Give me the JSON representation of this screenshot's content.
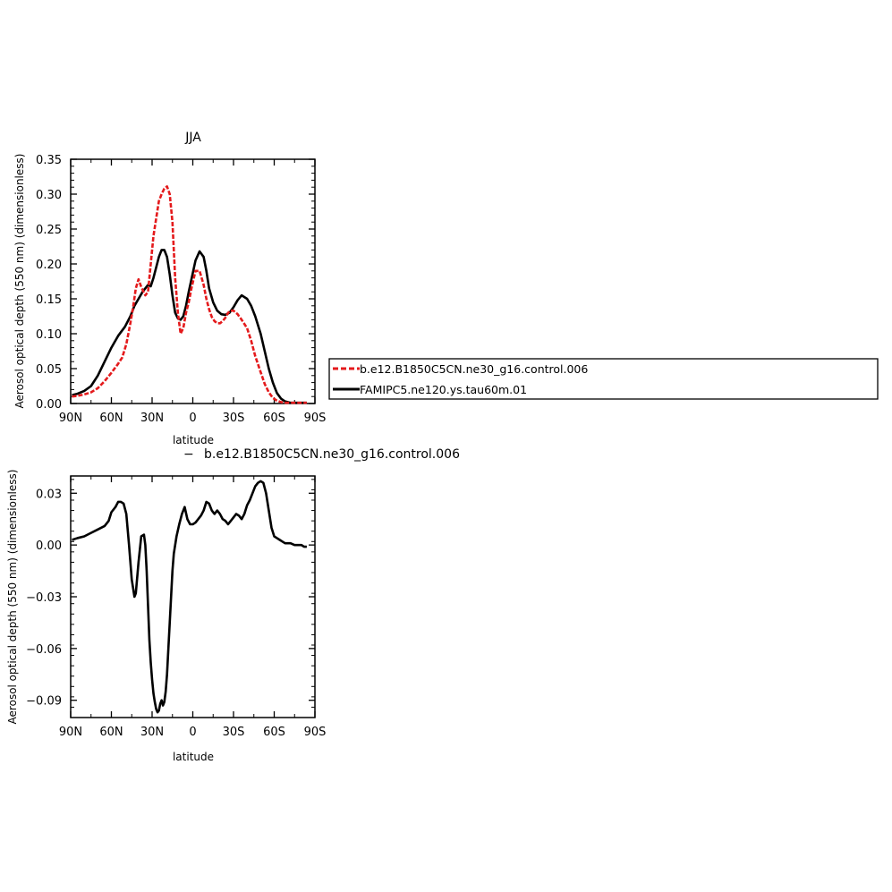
{
  "chart_data": [
    {
      "type": "line",
      "title": "JJA",
      "xlabel": "latitude",
      "ylabel": "Aerosol optical depth (550 nm) (dimensionless)",
      "xlim": [
        90,
        -90
      ],
      "ylim": [
        0,
        0.35
      ],
      "x_ticks": [
        90,
        60,
        30,
        0,
        -30,
        -60,
        -90
      ],
      "x_tick_labels": [
        "90N",
        "60N",
        "30N",
        "0",
        "30S",
        "60S",
        "90S"
      ],
      "y_ticks": [
        0,
        0.05,
        0.1,
        0.15,
        0.2,
        0.25,
        0.3,
        0.35
      ],
      "y_tick_labels": [
        "0.00",
        "0.05",
        "0.10",
        "0.15",
        "0.20",
        "0.25",
        "0.30",
        "0.35"
      ],
      "grid": false,
      "legend_position": "right, outside plot",
      "series": [
        {
          "name": "b.e12.B1850C5CN.ne30_g16.control.006",
          "color": "#e41a1c",
          "dash": "dashed",
          "x": [
            89,
            85,
            80,
            75,
            70,
            65,
            60,
            55,
            52,
            49,
            46,
            44,
            42,
            40,
            38,
            35,
            33,
            31,
            29,
            27,
            25,
            23,
            21,
            19,
            17,
            15,
            13,
            11,
            9,
            7,
            5,
            3,
            1,
            -2,
            -5,
            -8,
            -10,
            -12,
            -14,
            -16,
            -18,
            -20,
            -22,
            -24,
            -26,
            -28,
            -30,
            -33,
            -36,
            -40,
            -43,
            -46,
            -50,
            -53,
            -56,
            -59,
            -62,
            -65,
            -68,
            -70,
            -72,
            -75,
            -80,
            -84
          ],
          "y": [
            0.01,
            0.011,
            0.013,
            0.016,
            0.022,
            0.032,
            0.044,
            0.057,
            0.066,
            0.085,
            0.115,
            0.138,
            0.165,
            0.178,
            0.167,
            0.155,
            0.16,
            0.2,
            0.24,
            0.265,
            0.29,
            0.3,
            0.308,
            0.311,
            0.3,
            0.26,
            0.18,
            0.13,
            0.1,
            0.108,
            0.13,
            0.145,
            0.165,
            0.19,
            0.19,
            0.17,
            0.15,
            0.135,
            0.124,
            0.118,
            0.115,
            0.115,
            0.118,
            0.123,
            0.13,
            0.133,
            0.133,
            0.128,
            0.12,
            0.108,
            0.09,
            0.068,
            0.045,
            0.028,
            0.016,
            0.008,
            0.004,
            0.002,
            0.001,
            0.001,
            0.001,
            0.001,
            0.001,
            0.001
          ]
        },
        {
          "name": "FAMIPC5.ne120.ys.tau60m.01",
          "color": "#000000",
          "dash": "solid",
          "x": [
            89,
            85,
            80,
            75,
            70,
            65,
            60,
            55,
            50,
            46,
            43,
            40,
            37,
            35,
            33,
            31,
            29,
            27,
            25,
            23,
            21,
            19,
            17,
            15,
            13,
            11,
            9,
            7,
            5,
            3,
            1,
            -2,
            -5,
            -8,
            -10,
            -12,
            -15,
            -18,
            -21,
            -24,
            -27,
            -30,
            -33,
            -36,
            -40,
            -43,
            -46,
            -50,
            -53,
            -56,
            -59,
            -62,
            -65,
            -68,
            -70,
            -72,
            -75,
            -80,
            -84
          ],
          "y": [
            0.012,
            0.014,
            0.018,
            0.025,
            0.04,
            0.06,
            0.08,
            0.097,
            0.11,
            0.125,
            0.14,
            0.15,
            0.16,
            0.165,
            0.17,
            0.168,
            0.18,
            0.195,
            0.21,
            0.22,
            0.22,
            0.21,
            0.185,
            0.155,
            0.13,
            0.122,
            0.12,
            0.125,
            0.14,
            0.16,
            0.178,
            0.205,
            0.218,
            0.21,
            0.19,
            0.165,
            0.145,
            0.133,
            0.128,
            0.127,
            0.13,
            0.138,
            0.148,
            0.155,
            0.15,
            0.14,
            0.125,
            0.1,
            0.075,
            0.05,
            0.03,
            0.015,
            0.007,
            0.003,
            0.002,
            0.001,
            0.001,
            0.001,
            0.001
          ]
        }
      ]
    },
    {
      "type": "line",
      "title": "b.e12.B1850C5CN.ne30_g16.control.006",
      "title_prefix": "−",
      "xlabel": "latitude",
      "ylabel": "Aerosol optical depth (550 nm) (dimensionless)",
      "xlim": [
        90,
        -90
      ],
      "ylim": [
        -0.1,
        0.04
      ],
      "x_ticks": [
        90,
        60,
        30,
        0,
        -30,
        -60,
        -90
      ],
      "x_tick_labels": [
        "90N",
        "60N",
        "30N",
        "0",
        "30S",
        "60S",
        "90S"
      ],
      "y_ticks": [
        0.03,
        0,
        -0.03,
        -0.06,
        -0.09
      ],
      "y_tick_labels": [
        "0.03",
        "0.00",
        "−0.03",
        "−0.06",
        "−0.09"
      ],
      "grid": false,
      "series": [
        {
          "color": "#000000",
          "dash": "solid",
          "x": [
            89,
            85,
            80,
            75,
            70,
            65,
            62,
            60,
            57,
            55,
            53,
            51,
            49,
            47,
            45,
            43,
            42,
            40,
            38,
            36,
            35,
            34,
            33,
            32,
            31,
            30,
            29,
            28,
            27,
            26,
            25,
            24,
            23,
            22,
            21,
            20,
            19,
            18,
            17,
            16,
            15,
            14,
            12,
            10,
            8,
            6,
            4,
            2,
            0,
            -2,
            -4,
            -6,
            -8,
            -10,
            -12,
            -14,
            -16,
            -18,
            -20,
            -22,
            -24,
            -26,
            -28,
            -30,
            -32,
            -34,
            -36,
            -38,
            -40,
            -42,
            -44,
            -46,
            -48,
            -50,
            -52,
            -54,
            -56,
            -58,
            -60,
            -62,
            -64,
            -66,
            -68,
            -70,
            -72,
            -75,
            -78,
            -80,
            -82,
            -84
          ],
          "y": [
            0.003,
            0.004,
            0.005,
            0.007,
            0.009,
            0.011,
            0.014,
            0.019,
            0.022,
            0.025,
            0.025,
            0.024,
            0.018,
            0.0,
            -0.02,
            -0.03,
            -0.028,
            -0.01,
            0.005,
            0.006,
            0.0,
            -0.015,
            -0.035,
            -0.055,
            -0.068,
            -0.078,
            -0.086,
            -0.091,
            -0.095,
            -0.097,
            -0.096,
            -0.092,
            -0.09,
            -0.093,
            -0.091,
            -0.085,
            -0.075,
            -0.06,
            -0.045,
            -0.03,
            -0.015,
            -0.005,
            0.005,
            0.012,
            0.018,
            0.022,
            0.015,
            0.012,
            0.012,
            0.013,
            0.015,
            0.017,
            0.02,
            0.025,
            0.024,
            0.02,
            0.018,
            0.02,
            0.018,
            0.015,
            0.014,
            0.012,
            0.014,
            0.016,
            0.018,
            0.017,
            0.015,
            0.018,
            0.023,
            0.026,
            0.03,
            0.034,
            0.036,
            0.037,
            0.036,
            0.03,
            0.02,
            0.01,
            0.005,
            0.004,
            0.003,
            0.002,
            0.001,
            0.001,
            0.001,
            0.0,
            0.0,
            0.0,
            -0.001,
            -0.001
          ]
        }
      ]
    }
  ]
}
